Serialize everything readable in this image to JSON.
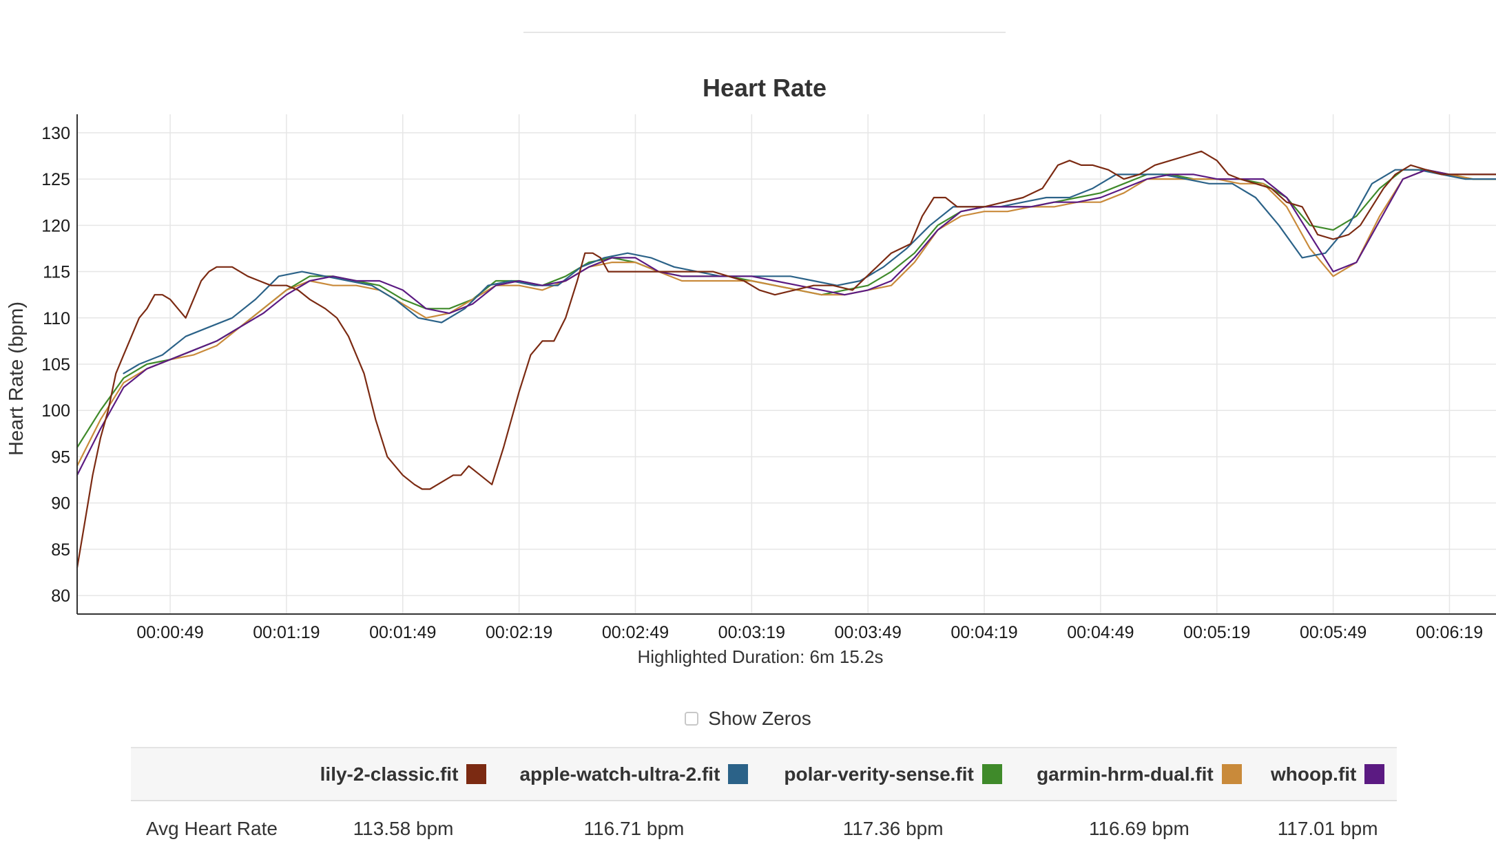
{
  "colors": {
    "lily": "#7b2a12",
    "apple": "#2b6288",
    "polar": "#3f8a2a",
    "garmin": "#c98a3a",
    "whoop": "#5b1a82",
    "grid": "#e6e6e6",
    "axis": "#333333"
  },
  "chart_data": {
    "type": "line",
    "title": "Heart Rate",
    "ylabel": "Heart Rate (bpm)",
    "xlabel": "",
    "subtitle": "Highlighted Duration: 6m 15.2s",
    "ylim": [
      78,
      132
    ],
    "xlim": [
      "00:00:25",
      "00:06:31"
    ],
    "y_ticks": [
      80,
      85,
      90,
      95,
      100,
      105,
      110,
      115,
      120,
      125,
      130
    ],
    "x_ticks": [
      "00:00:49",
      "00:01:19",
      "00:01:49",
      "00:02:19",
      "00:02:49",
      "00:03:19",
      "00:03:49",
      "00:04:19",
      "00:04:49",
      "00:05:19",
      "00:05:49",
      "00:06:19"
    ],
    "grid": true,
    "legend": "table-below",
    "series": [
      {
        "name": "lily-2-classic.fit",
        "color_key": "lily",
        "x": [
          "00:00:25",
          "00:00:27",
          "00:00:29",
          "00:00:31",
          "00:00:33",
          "00:00:35",
          "00:00:37",
          "00:00:39",
          "00:00:41",
          "00:00:43",
          "00:00:45",
          "00:00:47",
          "00:00:49",
          "00:00:51",
          "00:00:53",
          "00:00:55",
          "00:00:57",
          "00:00:59",
          "00:01:01",
          "00:01:03",
          "00:01:05",
          "00:01:07",
          "00:01:09",
          "00:01:12",
          "00:01:15",
          "00:01:19",
          "00:01:22",
          "00:01:25",
          "00:01:29",
          "00:01:32",
          "00:01:35",
          "00:01:39",
          "00:01:42",
          "00:01:45",
          "00:01:49",
          "00:01:52",
          "00:01:54",
          "00:01:56",
          "00:01:58",
          "00:02:00",
          "00:02:02",
          "00:02:04",
          "00:02:06",
          "00:02:09",
          "00:02:12",
          "00:02:15",
          "00:02:19",
          "00:02:22",
          "00:02:25",
          "00:02:28",
          "00:02:31",
          "00:02:34",
          "00:02:36",
          "00:02:38",
          "00:02:40",
          "00:02:42",
          "00:02:44",
          "00:02:46",
          "00:02:48",
          "00:02:50",
          "00:02:53",
          "00:02:57",
          "00:03:01",
          "00:03:05",
          "00:03:09",
          "00:03:13",
          "00:03:17",
          "00:03:21",
          "00:03:25",
          "00:03:30",
          "00:03:35",
          "00:03:40",
          "00:03:45",
          "00:03:50",
          "00:03:55",
          "00:04:00",
          "00:04:03",
          "00:04:06",
          "00:04:09",
          "00:04:12",
          "00:04:15",
          "00:04:19",
          "00:04:24",
          "00:04:29",
          "00:04:34",
          "00:04:38",
          "00:04:41",
          "00:04:44",
          "00:04:47",
          "00:04:51",
          "00:04:55",
          "00:04:59",
          "00:05:03",
          "00:05:07",
          "00:05:11",
          "00:05:15",
          "00:05:19",
          "00:05:22",
          "00:05:25",
          "00:05:29",
          "00:05:33",
          "00:05:37",
          "00:05:41",
          "00:05:45",
          "00:05:49",
          "00:05:53",
          "00:05:56",
          "00:05:59",
          "00:06:02",
          "00:06:05",
          "00:06:09",
          "00:06:13",
          "00:06:17",
          "00:06:21",
          "00:06:25",
          "00:06:31"
        ],
        "values": [
          83,
          88,
          93,
          97,
          100,
          104,
          106,
          108,
          110,
          111,
          112.5,
          112.5,
          112,
          111,
          110,
          112,
          114,
          115,
          115.5,
          115.5,
          115.5,
          115,
          114.5,
          114,
          113.5,
          113.5,
          113,
          112,
          111,
          110,
          108,
          104,
          99,
          95,
          93,
          92,
          91.5,
          91.5,
          92,
          92.5,
          93,
          93,
          94,
          93,
          92,
          96,
          102,
          106,
          107.5,
          107.5,
          110,
          114,
          117,
          117,
          116.5,
          115,
          115,
          115,
          115,
          115,
          115,
          115,
          115,
          115,
          115,
          114.5,
          114,
          113,
          112.5,
          113,
          113.5,
          113.5,
          113,
          115,
          117,
          118,
          121,
          123,
          123,
          122,
          122,
          122,
          122.5,
          123,
          124,
          126.5,
          127,
          126.5,
          126.5,
          126,
          125,
          125.5,
          126.5,
          127,
          127.5,
          128,
          127,
          125.5,
          125,
          124.5,
          124,
          122.5,
          122,
          119,
          118.5,
          119,
          120,
          122,
          124,
          125.5,
          126.5,
          126,
          125.5,
          125.5,
          125.5,
          125.5
        ]
      },
      {
        "name": "apple-watch-ultra-2.fit",
        "color_key": "apple",
        "x": [
          "00:00:37",
          "00:00:41",
          "00:00:47",
          "00:00:53",
          "00:00:59",
          "00:01:05",
          "00:01:11",
          "00:01:17",
          "00:01:23",
          "00:01:29",
          "00:01:35",
          "00:01:41",
          "00:01:47",
          "00:01:53",
          "00:01:59",
          "00:02:05",
          "00:02:11",
          "00:02:17",
          "00:02:23",
          "00:02:29",
          "00:02:35",
          "00:02:41",
          "00:02:47",
          "00:02:53",
          "00:02:59",
          "00:03:05",
          "00:03:11",
          "00:03:17",
          "00:03:23",
          "00:03:29",
          "00:03:35",
          "00:03:41",
          "00:03:47",
          "00:03:53",
          "00:03:59",
          "00:04:05",
          "00:04:11",
          "00:04:17",
          "00:04:23",
          "00:04:29",
          "00:04:35",
          "00:04:41",
          "00:04:47",
          "00:04:53",
          "00:04:59",
          "00:05:05",
          "00:05:11",
          "00:05:17",
          "00:05:23",
          "00:05:29",
          "00:05:35",
          "00:05:41",
          "00:05:47",
          "00:05:53",
          "00:05:59",
          "00:06:05",
          "00:06:11",
          "00:06:17",
          "00:06:23",
          "00:06:31"
        ],
        "values": [
          104,
          105,
          106,
          108,
          109,
          110,
          112,
          114.5,
          115,
          114.5,
          114,
          113.5,
          112,
          110,
          109.5,
          111,
          113.5,
          114,
          113.5,
          113.5,
          115.5,
          116.5,
          117,
          116.5,
          115.5,
          115,
          114.5,
          114.5,
          114.5,
          114.5,
          114,
          113.5,
          114,
          115.5,
          117.5,
          120,
          122,
          122,
          122,
          122.5,
          123,
          123,
          124,
          125.5,
          125.5,
          125.5,
          125,
          124.5,
          124.5,
          123,
          120,
          116.5,
          117,
          120,
          124.5,
          126,
          126,
          125.5,
          125,
          125
        ]
      },
      {
        "name": "polar-verity-sense.fit",
        "color_key": "polar",
        "x": [
          "00:00:25",
          "00:00:31",
          "00:00:37",
          "00:00:43",
          "00:00:49",
          "00:00:55",
          "00:01:01",
          "00:01:07",
          "00:01:13",
          "00:01:19",
          "00:01:25",
          "00:01:31",
          "00:01:37",
          "00:01:43",
          "00:01:49",
          "00:01:55",
          "00:02:01",
          "00:02:07",
          "00:02:13",
          "00:02:19",
          "00:02:25",
          "00:02:31",
          "00:02:37",
          "00:02:43",
          "00:02:49",
          "00:02:55",
          "00:03:01",
          "00:03:07",
          "00:03:13",
          "00:03:19",
          "00:03:25",
          "00:03:31",
          "00:03:37",
          "00:03:43",
          "00:03:49",
          "00:03:55",
          "00:04:01",
          "00:04:07",
          "00:04:13",
          "00:04:19",
          "00:04:25",
          "00:04:31",
          "00:04:37",
          "00:04:43",
          "00:04:49",
          "00:04:55",
          "00:05:01",
          "00:05:07",
          "00:05:13",
          "00:05:19",
          "00:05:25",
          "00:05:31",
          "00:05:37",
          "00:05:43",
          "00:05:49",
          "00:05:55",
          "00:06:01",
          "00:06:07",
          "00:06:13",
          "00:06:19",
          "00:06:25",
          "00:06:31"
        ],
        "values": [
          96,
          100,
          103.5,
          105,
          105.5,
          106.5,
          107.5,
          109,
          111,
          113,
          114.5,
          114.5,
          114,
          113.5,
          112,
          111,
          111,
          112,
          114,
          114,
          113.5,
          114.5,
          116,
          116.5,
          116,
          115,
          114.5,
          114.5,
          114.5,
          114,
          113.5,
          113,
          112.5,
          113,
          113.5,
          115,
          117,
          120,
          121.5,
          122,
          122,
          122,
          122.5,
          123,
          123.5,
          124.5,
          125.5,
          125.5,
          125,
          125,
          125,
          124.5,
          123,
          120,
          119.5,
          121,
          124,
          126,
          126,
          125.5,
          125,
          125
        ]
      },
      {
        "name": "garmin-hrm-dual.fit",
        "color_key": "garmin",
        "x": [
          "00:00:25",
          "00:00:31",
          "00:00:37",
          "00:00:43",
          "00:00:49",
          "00:00:55",
          "00:01:01",
          "00:01:07",
          "00:01:13",
          "00:01:19",
          "00:01:25",
          "00:01:31",
          "00:01:37",
          "00:01:43",
          "00:01:49",
          "00:01:55",
          "00:02:01",
          "00:02:07",
          "00:02:13",
          "00:02:19",
          "00:02:25",
          "00:02:31",
          "00:02:37",
          "00:02:43",
          "00:02:49",
          "00:02:55",
          "00:03:01",
          "00:03:07",
          "00:03:13",
          "00:03:19",
          "00:03:25",
          "00:03:31",
          "00:03:37",
          "00:03:43",
          "00:03:49",
          "00:03:55",
          "00:04:01",
          "00:04:07",
          "00:04:13",
          "00:04:19",
          "00:04:25",
          "00:04:31",
          "00:04:37",
          "00:04:43",
          "00:04:49",
          "00:04:55",
          "00:05:01",
          "00:05:07",
          "00:05:13",
          "00:05:19",
          "00:05:25",
          "00:05:31",
          "00:05:37",
          "00:05:43",
          "00:05:49",
          "00:05:55",
          "00:06:01",
          "00:06:07",
          "00:06:13",
          "00:06:19",
          "00:06:25",
          "00:06:31"
        ],
        "values": [
          94,
          99,
          103,
          104.5,
          105.5,
          106,
          107,
          109,
          111,
          113,
          114,
          113.5,
          113.5,
          113,
          111.5,
          110,
          110.5,
          112,
          113.5,
          113.5,
          113,
          114,
          115.5,
          116,
          116,
          115,
          114,
          114,
          114,
          114,
          113.5,
          113,
          112.5,
          112.5,
          113,
          113.5,
          116,
          119.5,
          121,
          121.5,
          121.5,
          122,
          122,
          122.5,
          122.5,
          123.5,
          125,
          125,
          125,
          125,
          124.5,
          124.5,
          122,
          117.5,
          114.5,
          116,
          121,
          125,
          126,
          125.5,
          125,
          125
        ]
      },
      {
        "name": "whoop.fit",
        "color_key": "whoop",
        "x": [
          "00:00:25",
          "00:00:31",
          "00:00:37",
          "00:00:43",
          "00:00:49",
          "00:00:55",
          "00:01:01",
          "00:01:07",
          "00:01:13",
          "00:01:19",
          "00:01:25",
          "00:01:31",
          "00:01:37",
          "00:01:43",
          "00:01:49",
          "00:01:55",
          "00:02:01",
          "00:02:07",
          "00:02:13",
          "00:02:19",
          "00:02:25",
          "00:02:31",
          "00:02:37",
          "00:02:43",
          "00:02:49",
          "00:02:55",
          "00:03:01",
          "00:03:07",
          "00:03:13",
          "00:03:19",
          "00:03:25",
          "00:03:31",
          "00:03:37",
          "00:03:43",
          "00:03:49",
          "00:03:55",
          "00:04:01",
          "00:04:07",
          "00:04:13",
          "00:04:19",
          "00:04:25",
          "00:04:31",
          "00:04:37",
          "00:04:43",
          "00:04:49",
          "00:04:55",
          "00:05:01",
          "00:05:07",
          "00:05:13",
          "00:05:19",
          "00:05:25",
          "00:05:31",
          "00:05:37",
          "00:05:43",
          "00:05:49",
          "00:05:55",
          "00:06:01",
          "00:06:07",
          "00:06:13",
          "00:06:19",
          "00:06:25",
          "00:06:31"
        ],
        "values": [
          93,
          98,
          102.5,
          104.5,
          105.5,
          106.5,
          107.5,
          109,
          110.5,
          112.5,
          114,
          114.5,
          114,
          114,
          113,
          111,
          110.5,
          111.5,
          113.5,
          114,
          113.5,
          114,
          115.5,
          116.5,
          116.5,
          115,
          114.5,
          114.5,
          114.5,
          114.5,
          114,
          113.5,
          113,
          112.5,
          113,
          114,
          116.5,
          119.5,
          121.5,
          122,
          122,
          122,
          122.5,
          122.5,
          123,
          124,
          125,
          125.5,
          125.5,
          125,
          125,
          125,
          123,
          119,
          115,
          116,
          120.5,
          125,
          126,
          125.5,
          125.5,
          125.5
        ]
      }
    ],
    "table": {
      "row_label": "Avg Heart Rate",
      "values": [
        "113.58 bpm",
        "116.71 bpm",
        "117.36 bpm",
        "116.69 bpm",
        "117.01 bpm"
      ]
    }
  },
  "controls": {
    "show_zeros_label": "Show Zeros",
    "show_zeros_checked": false
  }
}
